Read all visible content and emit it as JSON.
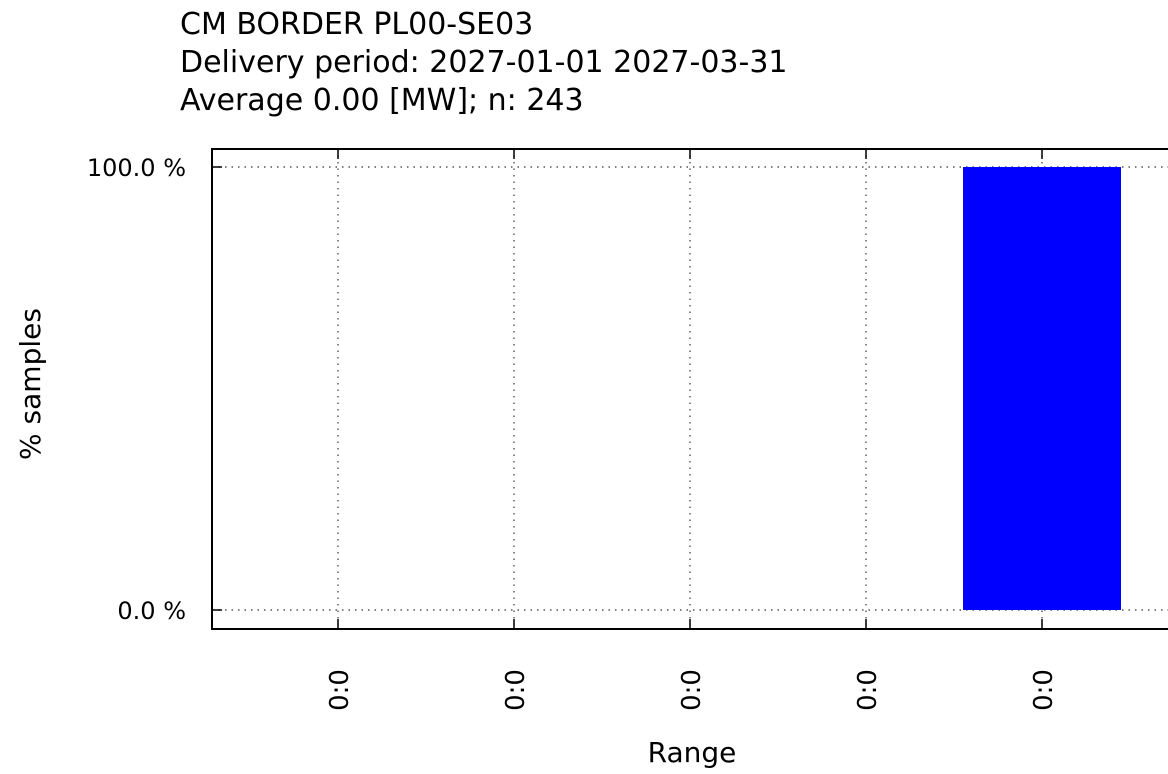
{
  "chart_data": {
    "type": "bar",
    "title_lines": [
      "CM BORDER PL00-SE03",
      "Delivery period: 2027-01-01 2027-03-31",
      "Average 0.00 [MW]; n: 243"
    ],
    "xlabel": "Range",
    "ylabel": "% samples",
    "categories": [
      "0:0",
      "0:0",
      "0:0",
      "0:0",
      "0:0"
    ],
    "values": [
      0,
      0,
      0,
      0,
      100
    ],
    "ylim": [
      0,
      100
    ],
    "yticks": [
      {
        "value": 0,
        "label": "0.0 %"
      },
      {
        "value": 100,
        "label": "100.0 %"
      }
    ],
    "grid": true,
    "bar_color": "#0000ff"
  }
}
